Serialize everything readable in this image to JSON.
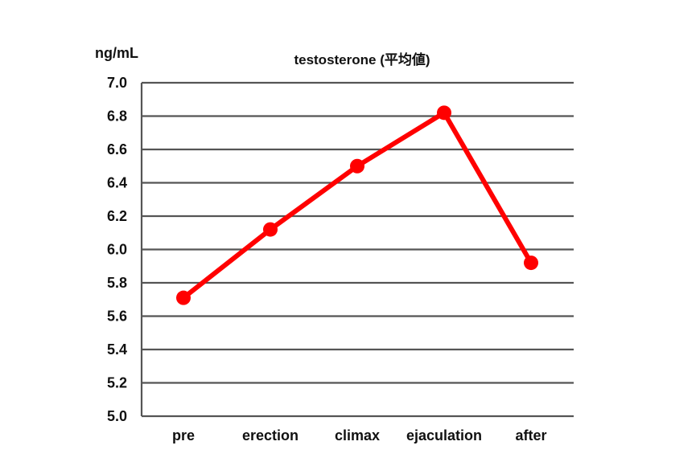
{
  "chart_data": {
    "type": "line",
    "title": "testosterone (平均値)",
    "ylabel": "ng/mL",
    "xlabel": "",
    "categories": [
      "pre",
      "erection",
      "climax",
      "ejaculation",
      "after"
    ],
    "series": [
      {
        "values": [
          5.71,
          6.12,
          6.5,
          6.82,
          5.92
        ]
      }
    ],
    "ylim": [
      5.0,
      7.0
    ],
    "yticks": [
      "7.0",
      "6.8",
      "6.6",
      "6.4",
      "6.2",
      "6.0",
      "5.8",
      "5.6",
      "5.4",
      "5.2",
      "5.0"
    ],
    "grid": true,
    "colors": {
      "line": "#ff0000",
      "grid": "#555555",
      "text": "#111111"
    }
  }
}
